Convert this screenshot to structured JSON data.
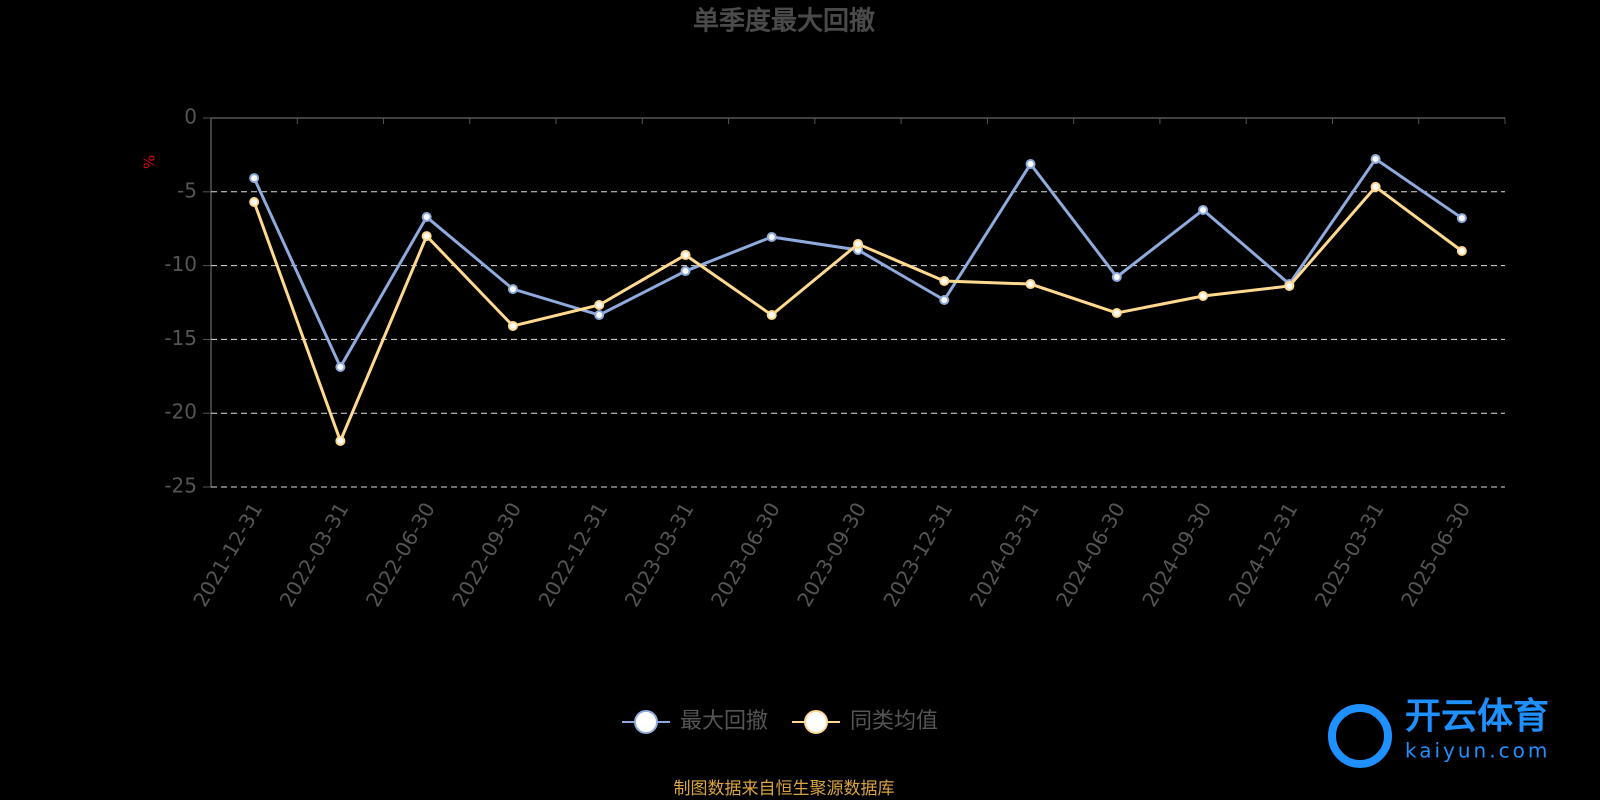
{
  "chart_data": {
    "type": "line",
    "title": "单季度最大回撤",
    "y_label": "%",
    "categories": [
      "2021-12-31",
      "2022-03-31",
      "2022-06-30",
      "2022-09-30",
      "2022-12-31",
      "2023-03-31",
      "2023-06-30",
      "2023-09-30",
      "2023-12-31",
      "2024-03-31",
      "2024-06-30",
      "2024-09-30",
      "2024-12-31",
      "2025-03-31",
      "2025-06-30"
    ],
    "series": [
      {
        "name": "最大回撤",
        "color": "#8faadc",
        "values": [
          -4.07,
          -16.87,
          -6.71,
          -11.59,
          -13.35,
          -10.37,
          -8.06,
          -8.94,
          -12.33,
          -3.12,
          -10.77,
          -6.23,
          -11.25,
          -2.78,
          -6.78
        ]
      },
      {
        "name": "同类均值",
        "color": "#ffd98f",
        "values": [
          -5.69,
          -21.88,
          -8.0,
          -14.09,
          -12.67,
          -9.28,
          -13.35,
          -8.54,
          -11.04,
          -11.25,
          -13.21,
          -12.06,
          -11.38,
          -4.67,
          -9.01
        ]
      }
    ],
    "ylim": [
      -25,
      0
    ],
    "yticks": [
      0,
      -5,
      -10,
      -15,
      -20,
      -25
    ],
    "grid": true,
    "legend": "bottom",
    "source": "制图数据来自恒生聚源数据库",
    "watermark": {
      "text": "开云体育",
      "subtext": "kaiyun.com"
    }
  }
}
